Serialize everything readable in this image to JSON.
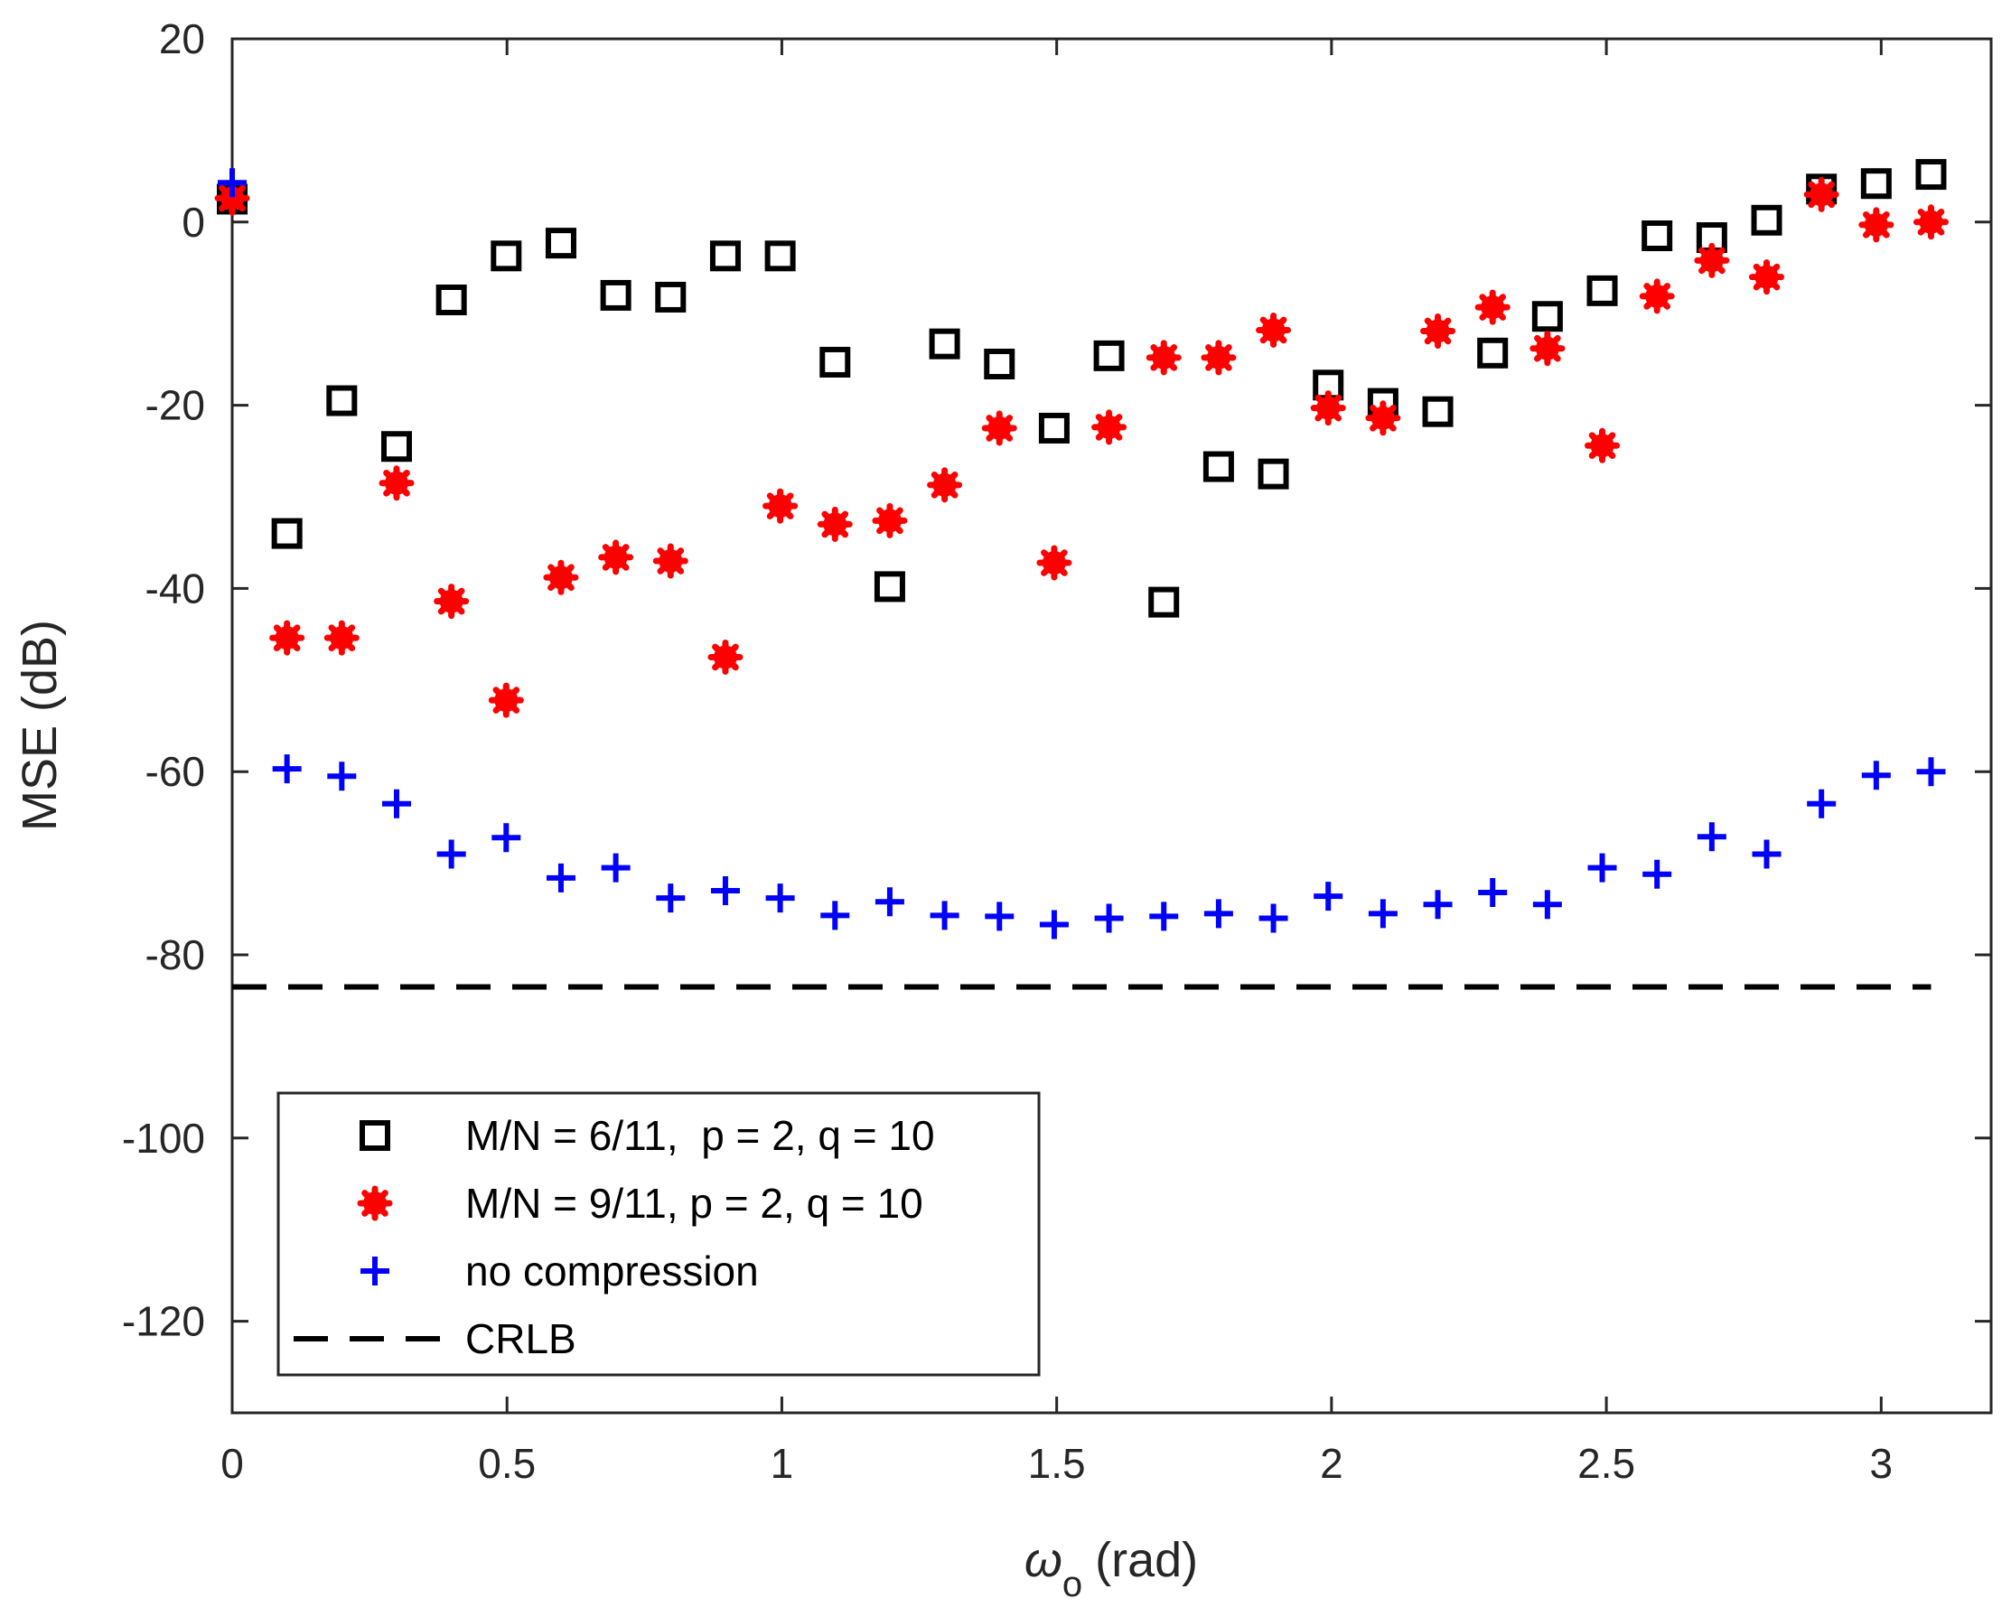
{
  "chart_data": {
    "type": "scatter",
    "xlabel_symbol": "ω",
    "xlabel_subscript": "o",
    "xlabel_unit": "(rad)",
    "ylabel": "MSE (dB)",
    "xlim": [
      0,
      3.2
    ],
    "ylim": [
      -130,
      20
    ],
    "xticks": [
      0,
      0.5,
      1,
      1.5,
      2,
      2.5,
      3
    ],
    "xtick_labels": [
      "0",
      "0.5",
      "1",
      "1.5",
      "2",
      "2.5",
      "3"
    ],
    "yticks": [
      20,
      0,
      -20,
      -40,
      -60,
      -80,
      -100,
      -120
    ],
    "ytick_labels": [
      "20",
      "0",
      "-20",
      "-40",
      "-60",
      "-80",
      "-100",
      "-120"
    ],
    "grid": false,
    "legend_position": "bottom-left",
    "x": [
      0,
      0.0997,
      0.1994,
      0.2991,
      0.3988,
      0.4985,
      0.5982,
      0.6979,
      0.7976,
      0.8973,
      0.997,
      1.0967,
      1.1964,
      1.2961,
      1.3958,
      1.4955,
      1.5952,
      1.6949,
      1.7946,
      1.8943,
      1.994,
      2.0937,
      2.1934,
      2.2931,
      2.3928,
      2.4925,
      2.5922,
      2.6919,
      2.7916,
      2.8913,
      2.991,
      3.0907
    ],
    "series": [
      {
        "name": "M/N = 6/11,  p = 2, q = 10",
        "marker": "square",
        "color": "#000000",
        "values": [
          2.5,
          -34,
          -19.5,
          -24.5,
          -8.5,
          -3.7,
          -2.3,
          -8,
          -8.2,
          -3.7,
          -3.7,
          -15.3,
          -39.8,
          -13.3,
          -15.5,
          -22.5,
          -14.6,
          -41.5,
          -26.7,
          -27.5,
          -17.8,
          -19.8,
          -20.7,
          -14.3,
          -10.3,
          -7.5,
          -1.5,
          -1.7,
          0.2,
          3.6,
          4.2,
          5.2
        ]
      },
      {
        "name": "M/N = 9/11, p = 2, q = 10",
        "marker": "star",
        "color": "#ff0000",
        "values": [
          2.6,
          -45.4,
          -45.4,
          -28.5,
          -41.4,
          -52.2,
          -38.8,
          -36.6,
          -37,
          -47.5,
          -31,
          -33,
          -32.6,
          -28.7,
          -22.5,
          -37.2,
          -22.4,
          -14.8,
          -14.8,
          -11.8,
          -20.3,
          -21.4,
          -11.9,
          -9.3,
          -13.8,
          -24.4,
          -8.1,
          -4.2,
          -6,
          3,
          -0.3,
          0
        ]
      },
      {
        "name": "no compression",
        "marker": "plus",
        "color": "#0000ff",
        "values": [
          4.3,
          -59.7,
          -60.5,
          -63.5,
          -69,
          -67.2,
          -71.6,
          -70.5,
          -73.8,
          -73,
          -73.8,
          -75.7,
          -74.2,
          -75.7,
          -75.8,
          -76.7,
          -76,
          -75.8,
          -75.5,
          -76,
          -73.6,
          -75.5,
          -74.5,
          -73.2,
          -74.5,
          -70.5,
          -71.2,
          -67.1,
          -69,
          -63.5,
          -60.4,
          -60
        ]
      },
      {
        "name": "CRLB",
        "marker": "dashed-line",
        "color": "#000000",
        "level": -83.5
      }
    ]
  }
}
